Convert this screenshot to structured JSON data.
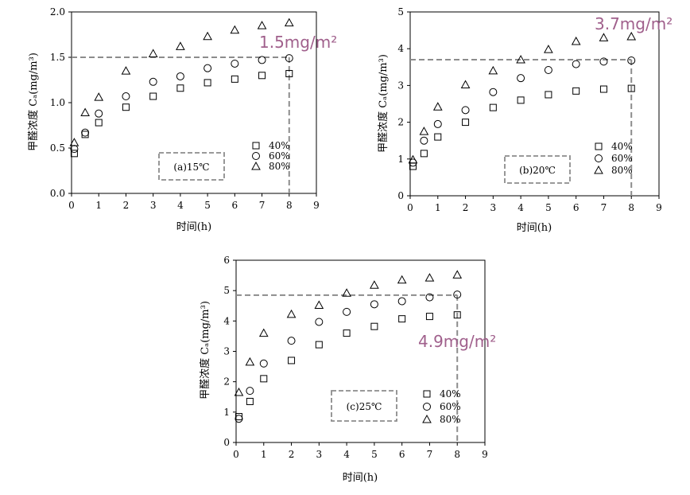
{
  "chart_data": [
    {
      "type": "scatter",
      "title": "(a)15℃",
      "xlabel": "时间(h)",
      "ylabel": "甲醛浓度 Cₐ(mg/m³)",
      "xlim": [
        0,
        9
      ],
      "ylim": [
        0,
        2.0
      ],
      "xticks": [
        "0",
        "1",
        "2",
        "3",
        "4",
        "5",
        "6",
        "7",
        "8",
        "9"
      ],
      "yticks": [
        "0.0",
        "0.5",
        "1.0",
        "1.5",
        "2.0"
      ],
      "grid": false,
      "legend_position": "bottom-right",
      "annotation": "1.5mg/m²",
      "reference_y": 1.5,
      "reference_x": 8,
      "series": [
        {
          "name": "40%",
          "marker": "square",
          "x": [
            0.1,
            0.5,
            1,
            2,
            3,
            4,
            5,
            6,
            7,
            8
          ],
          "y": [
            0.44,
            0.65,
            0.78,
            0.95,
            1.07,
            1.16,
            1.22,
            1.26,
            1.3,
            1.32
          ]
        },
        {
          "name": "60%",
          "marker": "circle",
          "x": [
            0.1,
            0.5,
            1,
            2,
            3,
            4,
            5,
            6,
            7,
            8
          ],
          "y": [
            0.49,
            0.67,
            0.88,
            1.07,
            1.23,
            1.29,
            1.38,
            1.43,
            1.47,
            1.49
          ]
        },
        {
          "name": "80%",
          "marker": "triangle",
          "x": [
            0.1,
            0.5,
            1,
            2,
            3,
            4,
            5,
            6,
            7,
            8
          ],
          "y": [
            0.56,
            0.89,
            1.06,
            1.35,
            1.54,
            1.62,
            1.73,
            1.8,
            1.85,
            1.88
          ]
        }
      ]
    },
    {
      "type": "scatter",
      "title": "(b)20℃",
      "xlabel": "时间(h)",
      "ylabel": "甲醛浓度 Cₐ(mg/m³)",
      "xlim": [
        0,
        9
      ],
      "ylim": [
        0,
        5
      ],
      "xticks": [
        "0",
        "1",
        "2",
        "3",
        "4",
        "5",
        "6",
        "7",
        "8",
        "9"
      ],
      "yticks": [
        "0",
        "1",
        "2",
        "3",
        "4",
        "5"
      ],
      "grid": false,
      "legend_position": "bottom-right",
      "annotation": "3.7mg/m²",
      "reference_y": 3.7,
      "reference_x": 8,
      "series": [
        {
          "name": "40%",
          "marker": "square",
          "x": [
            0.1,
            0.5,
            1,
            2,
            3,
            4,
            5,
            6,
            7,
            8
          ],
          "y": [
            0.8,
            1.15,
            1.6,
            2.0,
            2.4,
            2.6,
            2.75,
            2.85,
            2.9,
            2.92
          ]
        },
        {
          "name": "60%",
          "marker": "circle",
          "x": [
            0.1,
            0.5,
            1,
            2,
            3,
            4,
            5,
            6,
            7,
            8
          ],
          "y": [
            0.9,
            1.5,
            1.95,
            2.33,
            2.82,
            3.2,
            3.42,
            3.58,
            3.65,
            3.68
          ]
        },
        {
          "name": "80%",
          "marker": "triangle",
          "x": [
            0.1,
            0.5,
            1,
            2,
            3,
            4,
            5,
            6,
            7,
            8
          ],
          "y": [
            0.98,
            1.75,
            2.42,
            3.02,
            3.4,
            3.7,
            3.98,
            4.2,
            4.3,
            4.33
          ]
        }
      ]
    },
    {
      "type": "scatter",
      "title": "(c)25℃",
      "xlabel": "时间(h)",
      "ylabel": "甲醛浓度 Cₐ(mg/m³)",
      "xlim": [
        0,
        9
      ],
      "ylim": [
        0,
        6
      ],
      "xticks": [
        "0",
        "1",
        "2",
        "3",
        "4",
        "5",
        "6",
        "7",
        "8",
        "9"
      ],
      "yticks": [
        "0",
        "1",
        "2",
        "3",
        "4",
        "5",
        "6"
      ],
      "grid": false,
      "legend_position": "bottom-right",
      "annotation": "4.9mg/m²",
      "reference_y": 4.85,
      "reference_x": 8,
      "series": [
        {
          "name": "40%",
          "marker": "square",
          "x": [
            0.1,
            0.5,
            1,
            2,
            3,
            4,
            5,
            6,
            7,
            8
          ],
          "y": [
            0.85,
            1.35,
            2.1,
            2.7,
            3.22,
            3.6,
            3.82,
            4.07,
            4.15,
            4.2
          ]
        },
        {
          "name": "60%",
          "marker": "circle",
          "x": [
            0.1,
            0.5,
            1,
            2,
            3,
            4,
            5,
            6,
            7,
            8
          ],
          "y": [
            0.78,
            1.7,
            2.6,
            3.35,
            3.97,
            4.3,
            4.55,
            4.65,
            4.78,
            4.87
          ]
        },
        {
          "name": "80%",
          "marker": "triangle",
          "x": [
            0.1,
            0.5,
            1,
            2,
            3,
            4,
            5,
            6,
            7,
            8
          ],
          "y": [
            1.65,
            2.65,
            3.6,
            4.22,
            4.52,
            4.92,
            5.18,
            5.35,
            5.42,
            5.52
          ]
        }
      ]
    }
  ]
}
